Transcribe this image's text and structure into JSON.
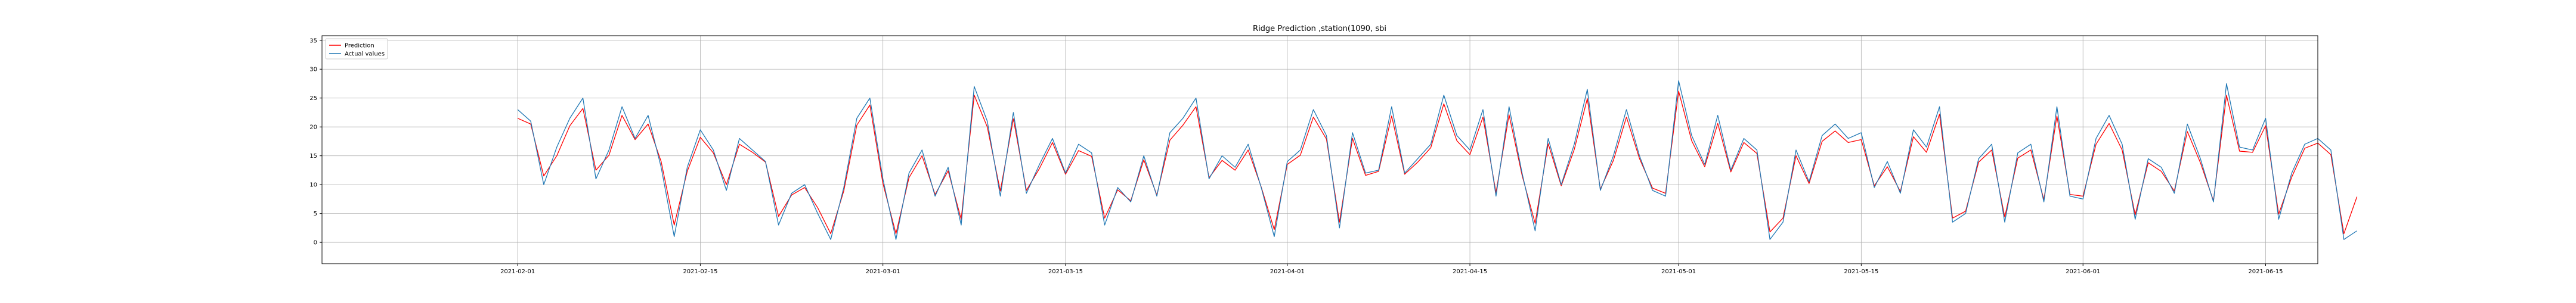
{
  "chart_data": {
    "type": "line",
    "title": "Ridge Prediction ,station(1090, sbi",
    "xlabel": "",
    "ylabel": "",
    "x_range": [
      "2021-01-17",
      "2021-06-19"
    ],
    "ylim": [
      -3.7,
      35.8
    ],
    "y_ticks": [
      0,
      5,
      10,
      15,
      20,
      25,
      30,
      35
    ],
    "y_tick_labels": [
      "0",
      "5",
      "10",
      "15",
      "20",
      "25",
      "30",
      "35"
    ],
    "x_ticks": [
      "2021-02-01",
      "2021-02-15",
      "2021-03-01",
      "2021-03-15",
      "2021-04-01",
      "2021-04-15",
      "2021-05-01",
      "2021-05-15",
      "2021-06-01",
      "2021-06-15"
    ],
    "x_tick_labels": [
      "2021-02-01",
      "2021-02-15",
      "2021-03-01",
      "2021-03-15",
      "2021-04-01",
      "2021-04-15",
      "2021-05-01",
      "2021-05-15",
      "2021-06-01",
      "2021-06-15"
    ],
    "grid": true,
    "legend_position": "top-left",
    "x_start": "2021-02-01",
    "x_step_days": 1,
    "series": [
      {
        "name": "Prediction",
        "color": "#ff0000",
        "values": [
          21.5,
          20.5,
          11.5,
          15.0,
          20.2,
          23.2,
          12.5,
          15.1,
          22.0,
          17.8,
          20.5,
          14.0,
          3.0,
          12.3,
          18.2,
          15.5,
          10.0,
          17.0,
          15.6,
          13.9,
          4.5,
          8.2,
          9.5,
          6.0,
          1.5,
          8.9,
          20.3,
          23.8,
          10.2,
          1.5,
          11.2,
          15.0,
          8.3,
          12.4,
          4.0,
          25.5,
          20.0,
          8.9,
          21.4,
          9.0,
          12.8,
          17.3,
          11.8,
          15.9,
          14.9,
          4.2,
          9.1,
          7.2,
          14.3,
          8.2,
          17.7,
          20.3,
          23.5,
          11.2,
          14.2,
          12.5,
          16.0,
          9.6,
          2.2,
          13.5,
          15.1,
          21.7,
          17.9,
          3.5,
          18.0,
          11.6,
          12.3,
          21.9,
          11.8,
          13.9,
          16.4,
          24.0,
          17.6,
          15.2,
          21.7,
          8.6,
          22.1,
          11.6,
          3.3,
          17.1,
          9.8,
          16.1,
          24.9,
          9.2,
          14.2,
          21.7,
          14.5,
          9.4,
          8.5,
          26.2,
          17.6,
          13.1,
          20.6,
          12.2,
          17.3,
          15.4,
          1.8,
          4.2,
          15.0,
          10.2,
          17.5,
          19.3,
          17.3,
          17.8,
          9.8,
          13.1,
          8.8,
          18.3,
          15.6,
          22.2,
          4.2,
          5.4,
          13.9,
          16.0,
          4.4,
          14.6,
          16.0,
          7.4,
          21.9,
          8.3,
          8.0,
          17.0,
          20.6,
          16.0,
          4.8,
          13.8,
          12.3,
          8.9,
          19.2,
          13.8,
          7.2,
          25.5,
          15.8,
          15.6,
          20.2,
          4.9,
          11.3,
          16.3,
          17.2,
          15.2,
          1.5,
          7.9
        ]
      },
      {
        "name": "Actual values",
        "color": "#1f77b4",
        "values": [
          23.0,
          21.0,
          10.0,
          16.5,
          21.5,
          25.0,
          11.0,
          16.0,
          23.5,
          18.0,
          22.0,
          13.0,
          1.0,
          13.0,
          19.5,
          16.0,
          9.0,
          18.0,
          16.0,
          14.0,
          3.0,
          8.5,
          10.0,
          5.0,
          0.5,
          9.5,
          21.5,
          25.0,
          11.0,
          0.5,
          12.0,
          16.0,
          8.0,
          13.0,
          3.0,
          27.0,
          21.0,
          8.0,
          22.5,
          8.5,
          13.5,
          18.0,
          12.0,
          17.0,
          15.5,
          3.0,
          9.5,
          7.0,
          15.0,
          8.0,
          19.0,
          21.5,
          25.0,
          11.0,
          15.0,
          13.0,
          17.0,
          9.5,
          1.0,
          14.0,
          16.0,
          23.0,
          18.5,
          2.5,
          19.0,
          12.0,
          12.5,
          23.5,
          12.0,
          14.5,
          17.0,
          25.5,
          18.5,
          16.0,
          23.0,
          8.0,
          23.5,
          12.0,
          2.0,
          18.0,
          10.0,
          17.0,
          26.5,
          9.0,
          15.0,
          23.0,
          15.0,
          9.0,
          8.0,
          28.0,
          18.5,
          13.5,
          22.0,
          12.5,
          18.0,
          16.0,
          0.5,
          3.5,
          16.0,
          10.5,
          18.5,
          20.5,
          18.0,
          19.0,
          9.5,
          14.0,
          8.5,
          19.5,
          16.5,
          23.5,
          3.5,
          5.0,
          14.5,
          17.0,
          3.5,
          15.5,
          17.0,
          7.0,
          23.5,
          8.0,
          7.5,
          18.0,
          22.0,
          17.0,
          4.0,
          14.5,
          13.0,
          8.5,
          20.5,
          14.5,
          7.0,
          27.5,
          16.5,
          16.0,
          21.5,
          4.0,
          12.0,
          17.0,
          18.0,
          16.0,
          0.5,
          2.0
        ]
      }
    ]
  }
}
